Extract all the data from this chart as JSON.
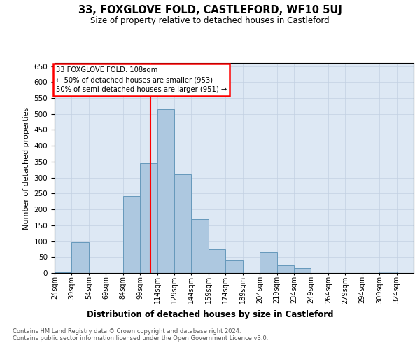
{
  "title": "33, FOXGLOVE FOLD, CASTLEFORD, WF10 5UJ",
  "subtitle": "Size of property relative to detached houses in Castleford",
  "xlabel": "Distribution of detached houses by size in Castleford",
  "ylabel": "Number of detached properties",
  "footer1": "Contains HM Land Registry data © Crown copyright and database right 2024.",
  "footer2": "Contains public sector information licensed under the Open Government Licence v3.0.",
  "annotation_line1": "33 FOXGLOVE FOLD: 108sqm",
  "annotation_line2": "← 50% of detached houses are smaller (953)",
  "annotation_line3": "50% of semi-detached houses are larger (951) →",
  "bar_color": "#adc8e0",
  "bar_edge_color": "#6699bb",
  "background_color": "#dde8f4",
  "red_line_x": 108,
  "categories": [
    "24sqm",
    "39sqm",
    "54sqm",
    "69sqm",
    "84sqm",
    "99sqm",
    "114sqm",
    "129sqm",
    "144sqm",
    "159sqm",
    "174sqm",
    "189sqm",
    "204sqm",
    "219sqm",
    "234sqm",
    "249sqm",
    "264sqm",
    "279sqm",
    "294sqm",
    "309sqm",
    "324sqm"
  ],
  "bin_starts": [
    24,
    39,
    54,
    69,
    84,
    99,
    114,
    129,
    144,
    159,
    174,
    189,
    204,
    219,
    234,
    249,
    264,
    279,
    294,
    309,
    324
  ],
  "bin_width": 15,
  "values": [
    3,
    97,
    0,
    0,
    243,
    345,
    515,
    310,
    170,
    75,
    40,
    0,
    65,
    25,
    15,
    0,
    0,
    0,
    0,
    5,
    0
  ],
  "ylim": [
    0,
    660
  ],
  "yticks": [
    0,
    50,
    100,
    150,
    200,
    250,
    300,
    350,
    400,
    450,
    500,
    550,
    600,
    650
  ],
  "grid_color": "#c2d0e2"
}
